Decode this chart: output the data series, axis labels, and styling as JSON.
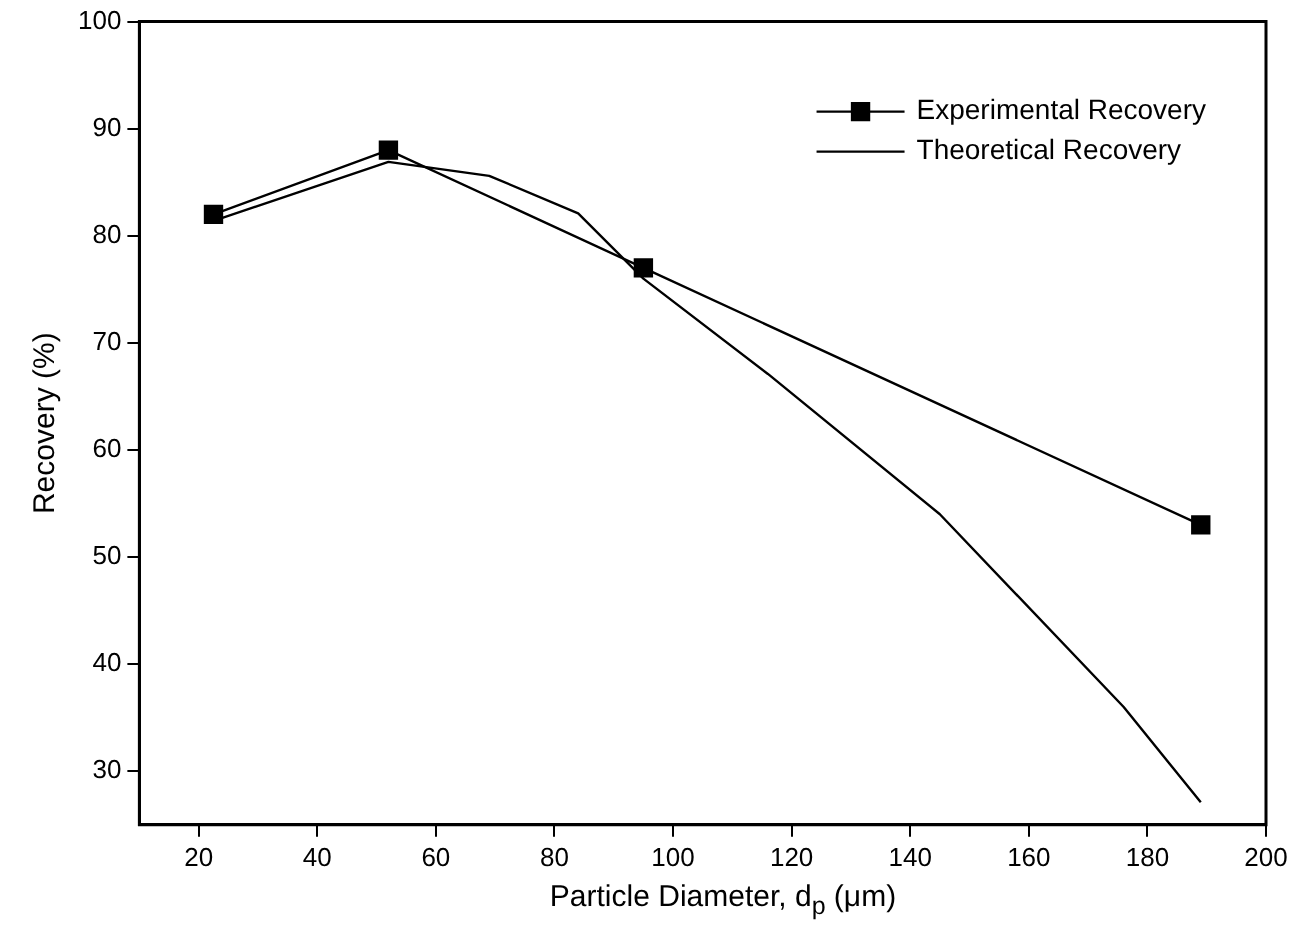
{
  "chart_data": {
    "type": "line",
    "xlabel": "Particle Diameter, d$_{p}$ (μm)",
    "ylabel": "Recovery (%)",
    "xlim": [
      10,
      200
    ],
    "xticks": [
      20,
      40,
      60,
      80,
      100,
      120,
      140,
      160,
      180,
      200
    ],
    "ylim": [
      25,
      100
    ],
    "yticks": [
      30,
      40,
      50,
      60,
      70,
      80,
      90,
      100
    ],
    "grid": false,
    "legend": "top right",
    "series": [
      {
        "name": "Experimental Recovery",
        "color": "#000000",
        "marker": "square",
        "x": [
          22.5,
          52,
          95,
          189
        ],
        "values": [
          82,
          88,
          77,
          53
        ]
      },
      {
        "name": "Theoretical Recovery",
        "color": "#000000",
        "marker": "none",
        "x": [
          22.5,
          52,
          69,
          84,
          95,
          116,
          145,
          176,
          189
        ],
        "values": [
          81.4,
          86.9,
          85.6,
          82.1,
          76,
          67.1,
          54,
          36,
          27.1
        ]
      }
    ]
  }
}
